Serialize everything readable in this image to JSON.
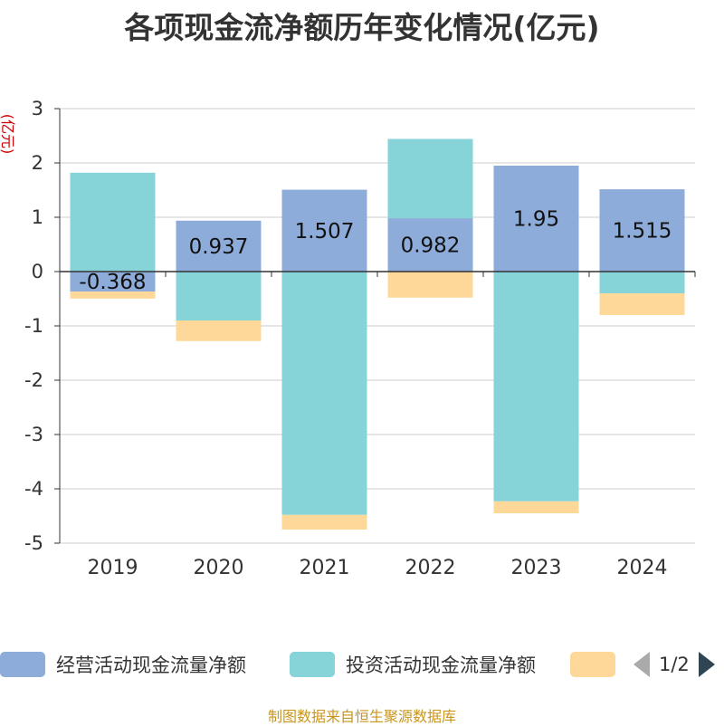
{
  "title": "各项现金流净额历年变化情况(亿元)",
  "unit": "(亿元)",
  "source": "制图数据来自恒生聚源数据库",
  "legend": {
    "pager": "1/2",
    "items": [
      {
        "name": "经营活动现金流量净额",
        "color": "#8eacda"
      },
      {
        "name": "投资活动现金流量净额",
        "color": "#86d4d8"
      },
      {
        "name": "",
        "color": "#fed899"
      }
    ]
  },
  "chart_data": {
    "type": "bar",
    "stacked": true,
    "categories": [
      "2019",
      "2020",
      "2021",
      "2022",
      "2023",
      "2024"
    ],
    "ylim": [
      -5,
      3
    ],
    "yticks": [
      3,
      2,
      1,
      0,
      -1,
      -2,
      -3,
      -4,
      -5
    ],
    "grid": true,
    "legend_position": "bottom",
    "series": [
      {
        "name": "经营活动现金流量净额",
        "color": "#8eacda",
        "values": [
          -0.368,
          0.937,
          1.507,
          0.982,
          1.95,
          1.515
        ],
        "labels": [
          "-0.368",
          "0.937",
          "1.507",
          "0.982",
          "1.95",
          "1.515"
        ]
      },
      {
        "name": "投资活动现金流量净额",
        "color": "#86d4d8",
        "values": [
          1.82,
          -0.9,
          -4.48,
          1.46,
          -4.23,
          -0.4
        ]
      },
      {
        "name": "",
        "color": "#fed899",
        "values": [
          -0.13,
          -0.38,
          -0.27,
          -0.48,
          -0.22,
          -0.4
        ]
      }
    ]
  }
}
